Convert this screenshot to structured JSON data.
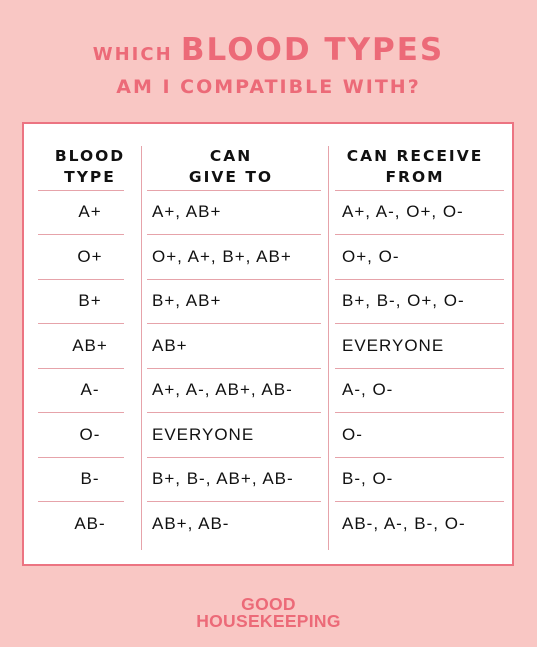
{
  "title": {
    "prefix": "WHICH",
    "emphasis": "BLOOD TYPES",
    "line2": "AM I COMPATIBLE WITH?"
  },
  "table": {
    "headers": [
      "BLOOD\nTYPE",
      "CAN\nGIVE TO",
      "CAN RECEIVE\nFROM"
    ],
    "rows": [
      {
        "type": "A+",
        "give": "A+, AB+",
        "receive": "A+, A-, O+, O-"
      },
      {
        "type": "O+",
        "give": "O+, A+, B+, AB+",
        "receive": "O+, O-"
      },
      {
        "type": "B+",
        "give": "B+, AB+",
        "receive": "B+, B-, O+, O-"
      },
      {
        "type": "AB+",
        "give": "AB+",
        "receive": "EVERYONE"
      },
      {
        "type": "A-",
        "give": "A+, A-, AB+, AB-",
        "receive": "A-, O-"
      },
      {
        "type": "O-",
        "give": "EVERYONE",
        "receive": "O-"
      },
      {
        "type": "B-",
        "give": "B+, B-, AB+, AB-",
        "receive": "B-, O-"
      },
      {
        "type": "AB-",
        "give": "AB+, AB-",
        "receive": "AB-, A-, B-, O-"
      }
    ]
  },
  "brand": {
    "line1": "GOOD",
    "line2": "HOUSEKEEPING"
  },
  "colors": {
    "background": "#f9c7c4",
    "accent": "#ec6a78",
    "card": "#ffffff",
    "rule": "#e6a3aa",
    "text": "#111111"
  }
}
